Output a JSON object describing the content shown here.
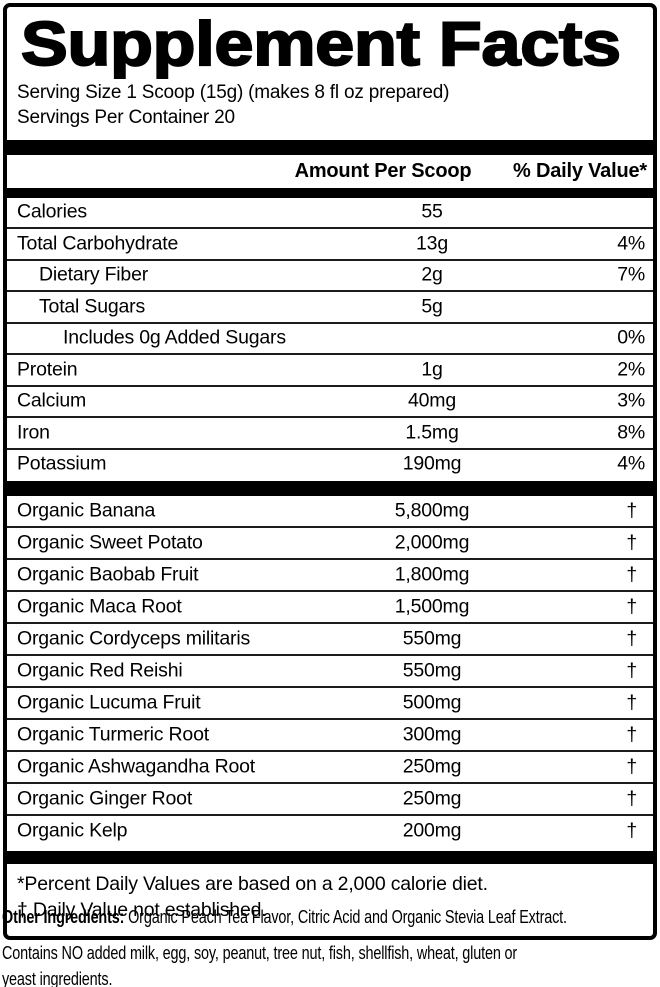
{
  "label": {
    "title": "Supplement Facts",
    "serving_size": "Serving Size 1 Scoop (15g) (makes 8 fl oz prepared)",
    "servings_per_container": "Servings Per Container 20",
    "columns": {
      "amount": "Amount Per Scoop",
      "daily_value": "% Daily Value*"
    },
    "nutrients": [
      {
        "name": "Calories",
        "amount": "55",
        "dv": "",
        "indent": 0
      },
      {
        "name": "Total Carbohydrate",
        "amount": "13g",
        "dv": "4%",
        "indent": 0
      },
      {
        "name": "Dietary Fiber",
        "amount": "2g",
        "dv": "7%",
        "indent": 1
      },
      {
        "name": "Total Sugars",
        "amount": "5g",
        "dv": "",
        "indent": 1
      },
      {
        "name": "Includes 0g Added Sugars",
        "amount": "",
        "dv": "0%",
        "indent": 2
      },
      {
        "name": "Protein",
        "amount": "1g",
        "dv": "2%",
        "indent": 0
      },
      {
        "name": "Calcium",
        "amount": "40mg",
        "dv": "3%",
        "indent": 0
      },
      {
        "name": "Iron",
        "amount": "1.5mg",
        "dv": "8%",
        "indent": 0
      },
      {
        "name": "Potassium",
        "amount": "190mg",
        "dv": "4%",
        "indent": 0
      }
    ],
    "botanicals": [
      {
        "name": "Organic Banana",
        "amount": "5,800mg",
        "dv": "†"
      },
      {
        "name": "Organic Sweet Potato",
        "amount": "2,000mg",
        "dv": "†"
      },
      {
        "name": "Organic Baobab Fruit",
        "amount": "1,800mg",
        "dv": "†"
      },
      {
        "name": "Organic Maca Root",
        "amount": "1,500mg",
        "dv": "†"
      },
      {
        "name": "Organic Cordyceps militaris",
        "amount": "550mg",
        "dv": "†"
      },
      {
        "name": "Organic Red Reishi",
        "amount": "550mg",
        "dv": "†"
      },
      {
        "name": "Organic Lucuma Fruit",
        "amount": "500mg",
        "dv": "†"
      },
      {
        "name": "Organic Turmeric Root",
        "amount": "300mg",
        "dv": "†"
      },
      {
        "name": "Organic Ashwagandha Root",
        "amount": "250mg",
        "dv": "†"
      },
      {
        "name": "Organic Ginger Root",
        "amount": "250mg",
        "dv": "†"
      },
      {
        "name": "Organic Kelp",
        "amount": "200mg",
        "dv": "†"
      }
    ],
    "footnotes": [
      "*Percent Daily Values are based on a 2,000 calorie diet.",
      "† Daily Value not established."
    ]
  },
  "below_label": {
    "other_ingredients_label": "Other Ingredients:",
    "other_ingredients_text": " Organic Peach Tea Flavor, Citric Acid and Organic Stevia Leaf Extract.",
    "allergen_lines": [
      "Contains NO added milk, egg, soy, peanut, tree nut, fish, shellfish, wheat, gluten or",
      "yeast ingredients."
    ]
  },
  "colors": {
    "text": "#000000",
    "background": "#ffffff",
    "rule": "#1c1c1c",
    "bar": "#000000"
  }
}
